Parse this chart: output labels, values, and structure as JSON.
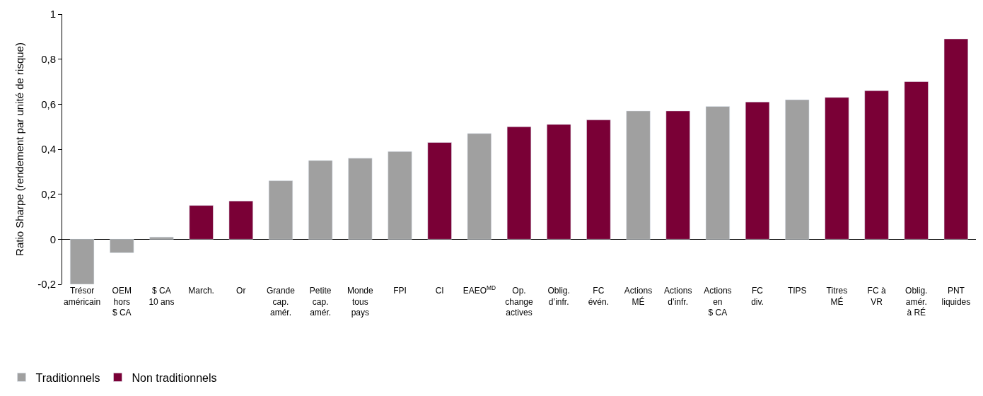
{
  "chart_data": {
    "type": "bar",
    "stacked": true,
    "ylabel": "Ratio Sharpe (rendement par unité de risque)",
    "categories": [
      "Trésor\naméricain",
      "OEM\nhors\n$ CA",
      "$ CA\n10 ans",
      "March.",
      "Or",
      "Grande\ncap.\namér.",
      "Petite\ncap.\namér.",
      "Monde\ntous\npays",
      "FPI",
      "CI",
      "EAEO$^{MD}$",
      "Op.\nchange\nactives",
      "Oblig.\nd’infr.",
      "FC\névén.",
      "Actions\nMÉ",
      "Actions\nd’infr.",
      "Actions\nen\n$ CA",
      "FC\ndiv.",
      "TIPS",
      "Titres\nMÉ",
      "FC à\nVR",
      "Oblig.\namér.\nà RÉ",
      "PNT\nliquides"
    ],
    "series": [
      {
        "name": "Traditionnels",
        "color": "#a0a0a0",
        "values": [
          -0.2,
          -0.06,
          0.01,
          null,
          null,
          0.26,
          0.35,
          0.36,
          0.39,
          null,
          0.47,
          null,
          null,
          null,
          0.57,
          null,
          0.59,
          null,
          0.62,
          null,
          null,
          null,
          null
        ]
      },
      {
        "name": "Non traditionnels",
        "color": "#7a0036",
        "values": [
          null,
          null,
          null,
          0.15,
          0.17,
          null,
          null,
          null,
          null,
          0.43,
          null,
          0.5,
          0.51,
          0.53,
          null,
          0.57,
          null,
          0.61,
          null,
          0.63,
          0.66,
          0.7,
          0.89
        ]
      }
    ],
    "ylim": [
      -0.2,
      1
    ],
    "yticks": [
      {
        "value": -0.2,
        "label": "-0,2"
      },
      0,
      {
        "value": 0.2,
        "label": "0,2"
      },
      {
        "value": 0.4,
        "label": "0,4"
      },
      {
        "value": 0.6,
        "label": "0,6"
      },
      {
        "value": 0.8,
        "label": "0,8"
      },
      1
    ],
    "legend": "bottom left"
  }
}
